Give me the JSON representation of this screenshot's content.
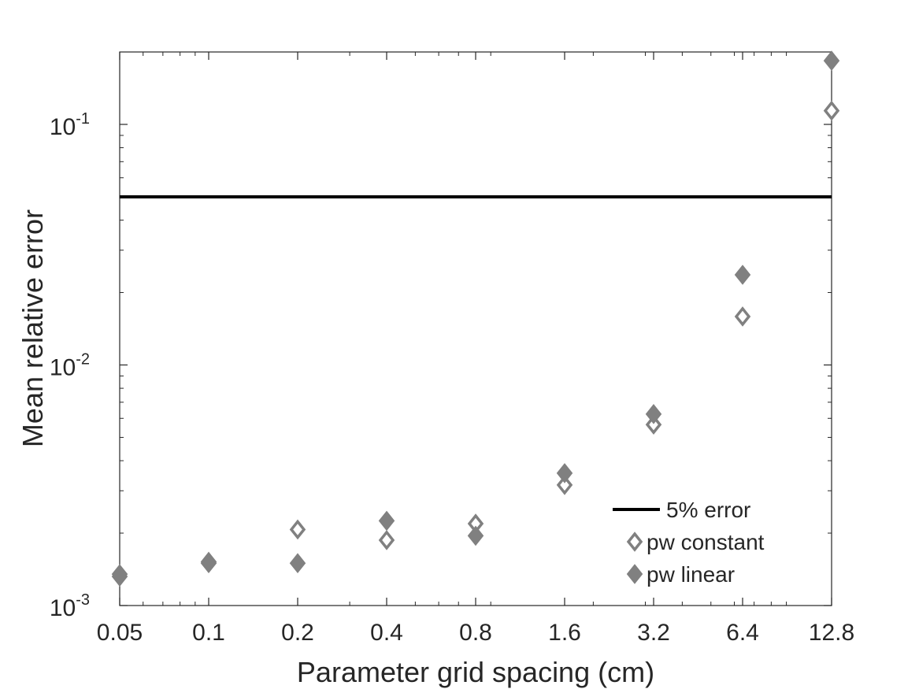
{
  "chart_data": {
    "type": "scatter",
    "xlabel": "Parameter grid spacing (cm)",
    "ylabel": "Mean relative error",
    "x_scale": "log2",
    "y_scale": "log10",
    "xlim": [
      0.05,
      12.8
    ],
    "ylim": [
      0.001,
      0.2
    ],
    "x_ticks": [
      0.05,
      0.1,
      0.2,
      0.4,
      0.8,
      1.6,
      3.2,
      6.4,
      12.8
    ],
    "x_tick_labels": [
      "0.05",
      "0.1",
      "0.2",
      "0.4",
      "0.8",
      "1.6",
      "3.2",
      "6.4",
      "12.8"
    ],
    "y_ticks": [
      {
        "value": 0.001,
        "base": "10",
        "exp": "-3"
      },
      {
        "value": 0.01,
        "base": "10",
        "exp": "-2"
      },
      {
        "value": 0.1,
        "base": "10",
        "exp": "-1"
      }
    ],
    "reference_line": {
      "label": "5% error",
      "y": 0.05,
      "color": "#000000"
    },
    "series": [
      {
        "name": "pw constant",
        "marker": "diamond-open",
        "color": "#808080",
        "x": [
          0.05,
          0.1,
          0.2,
          0.4,
          0.8,
          1.6,
          3.2,
          6.4,
          12.8
        ],
        "y": [
          0.00135,
          0.00152,
          0.00207,
          0.00187,
          0.00219,
          0.00317,
          0.00565,
          0.0159,
          0.114
        ]
      },
      {
        "name": "pw linear",
        "marker": "diamond-filled",
        "color": "#808080",
        "x": [
          0.05,
          0.1,
          0.2,
          0.4,
          0.8,
          1.6,
          3.2,
          6.4,
          12.8
        ],
        "y": [
          0.00132,
          0.0015,
          0.0015,
          0.00225,
          0.00195,
          0.00355,
          0.00625,
          0.0237,
          0.184
        ]
      }
    ],
    "legend": {
      "position": "bottom-right",
      "entries": [
        "5% error",
        "pw constant",
        "pw linear"
      ]
    },
    "grid": false
  }
}
